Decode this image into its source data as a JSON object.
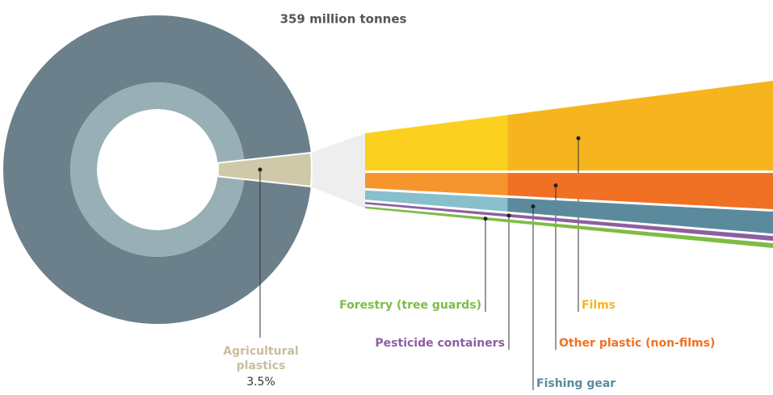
{
  "chart_data": {
    "type": "donut-fan",
    "title": "359 million tonnes",
    "slice": {
      "name": "Agricultural plastics",
      "value": 3.5,
      "value_label": "3.5%",
      "color": "#cfc8a9"
    },
    "ring_colors": [
      "#6b808b",
      "#98afb6"
    ],
    "breakdown": {
      "categories": [
        "Films",
        "Other plastic (non-films)",
        "Fishing gear",
        "Pesticide containers",
        "Forestry (tree guards)"
      ],
      "values": [
        57,
        23,
        14,
        3,
        3
      ],
      "colors": [
        "#f6b51e",
        "#f07124",
        "#5b8a9d",
        "#8e5ea3",
        "#7dbd43"
      ],
      "light_colors": [
        "#fbd01f",
        "#f5952d",
        "#87bfcb",
        "#8e5ea3",
        "#7dbd43"
      ],
      "label_colors": [
        "#f6b51e",
        "#f07124",
        "#5b8a9d",
        "#8e5ea3",
        "#7dbd43"
      ]
    }
  }
}
